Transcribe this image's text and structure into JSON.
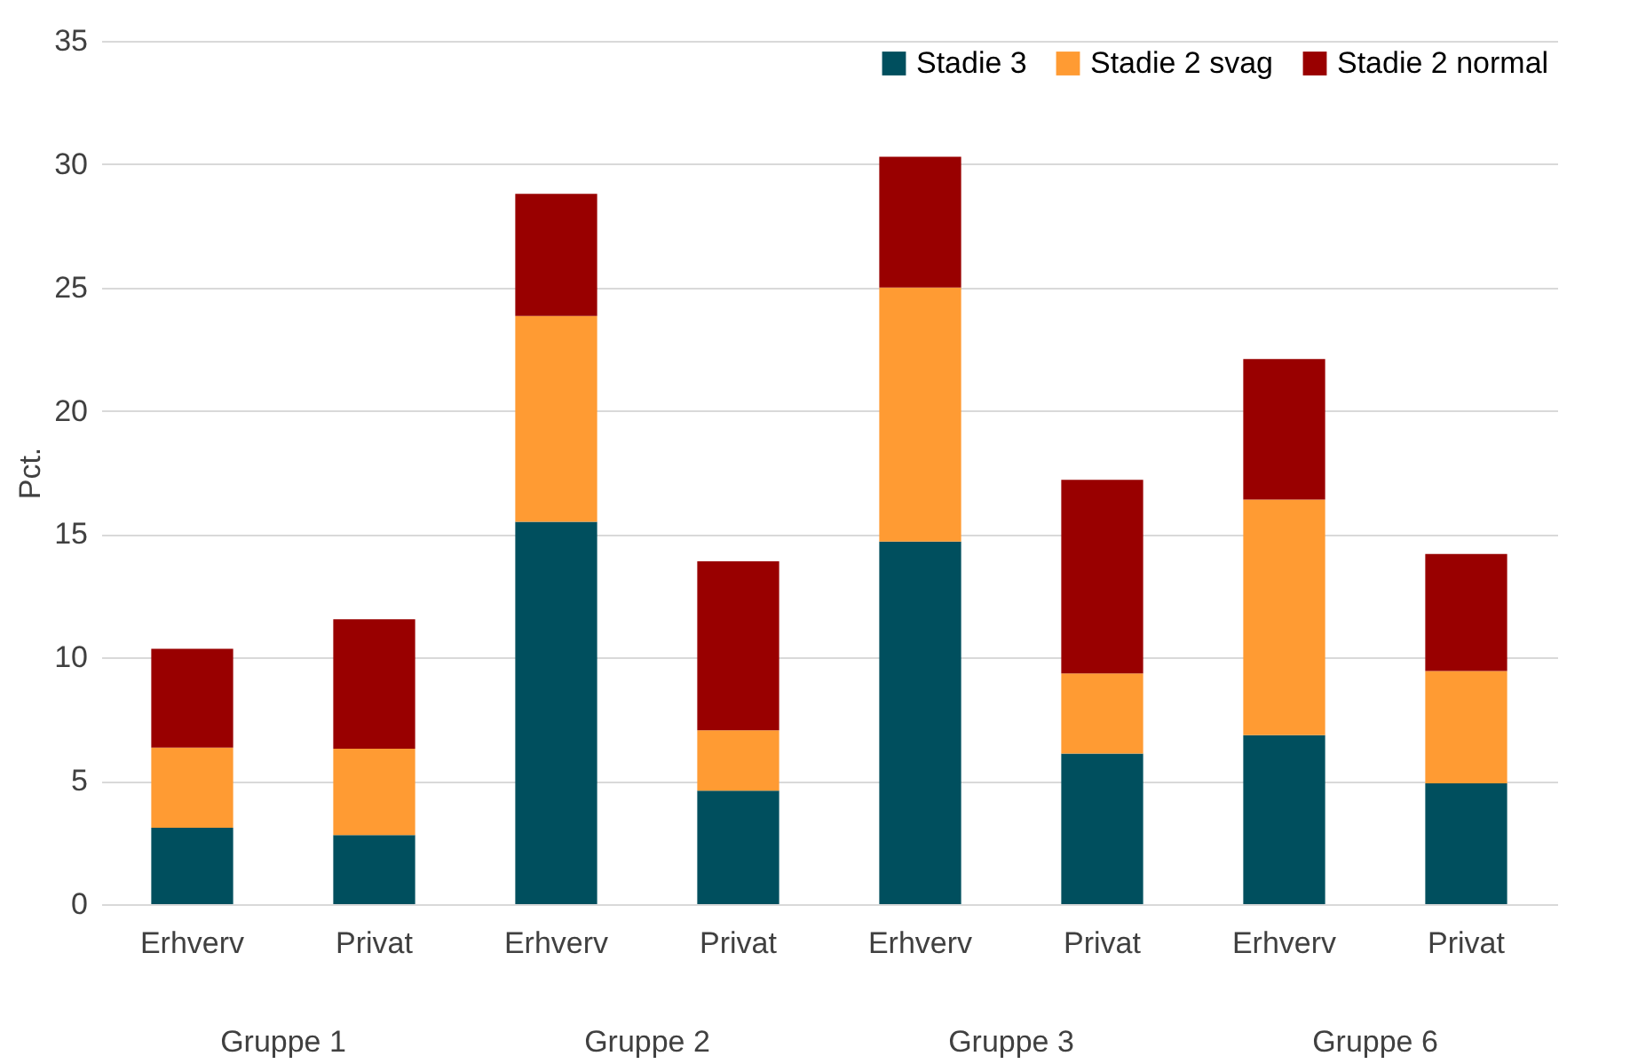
{
  "chart_data": {
    "type": "bar",
    "stacked": true,
    "ylabel": "Pct.",
    "categories": [
      "Erhverv",
      "Privat",
      "Erhverv",
      "Privat",
      "Erhverv",
      "Privat",
      "Erhverv",
      "Privat"
    ],
    "series": [
      {
        "name": "Stadie 3",
        "color": "#004f5e",
        "values": [
          3.1,
          2.8,
          15.5,
          4.6,
          14.7,
          6.1,
          6.85,
          4.9
        ]
      },
      {
        "name": "Stadie 2 svag",
        "color": "#ff9b33",
        "values": [
          3.25,
          3.5,
          8.35,
          2.45,
          10.3,
          3.25,
          9.55,
          4.55
        ]
      },
      {
        "name": "Stadie 2 normal",
        "color": "#990000",
        "values": [
          4.0,
          5.25,
          4.95,
          6.85,
          5.3,
          7.85,
          5.7,
          4.75
        ]
      }
    ],
    "annotations": [
      "Gruppe 1",
      "Gruppe 2",
      "Gruppe 3",
      "Gruppe 6"
    ],
    "ylim": [
      0,
      35
    ],
    "yticks": [
      0,
      5,
      10,
      15,
      20,
      25,
      30,
      35
    ],
    "grid": "y",
    "legend": "top right"
  }
}
